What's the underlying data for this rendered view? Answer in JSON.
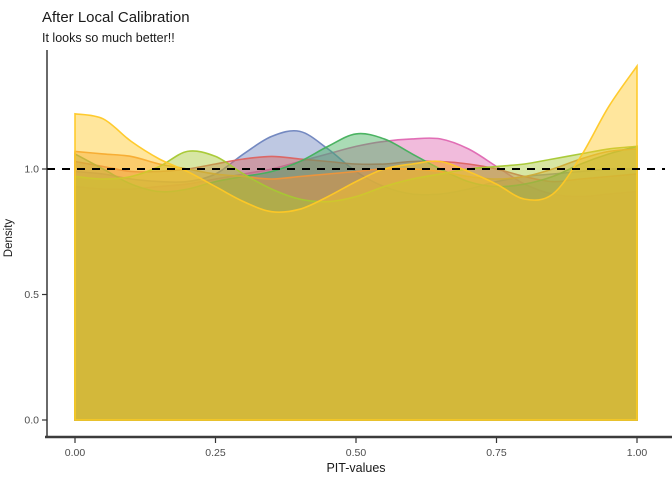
{
  "header": {
    "title": "After Local Calibration",
    "subtitle": "It looks so much better!!"
  },
  "chart_data": {
    "type": "area",
    "subtype": "overlapping-density",
    "title": "After Local Calibration",
    "subtitle": "It looks so much better!!",
    "xlabel": "PIT-values",
    "ylabel": "Density",
    "xlim": [
      0,
      1
    ],
    "ylim": [
      0,
      1.48
    ],
    "grid": false,
    "legend": "none",
    "x_ticks": [
      "0.00",
      "0.25",
      "0.50",
      "0.75",
      "1.00"
    ],
    "x_tick_values": [
      0,
      0.25,
      0.5,
      0.75,
      1
    ],
    "y_ticks": [
      "0.0",
      "0.5",
      "1.0"
    ],
    "y_tick_values": [
      0,
      0.5,
      1
    ],
    "reference_line": {
      "y": 1.0,
      "style": "dashed",
      "color": "#000000"
    },
    "fill_alpha": 0.45,
    "overlap_color": "#d4bc4e",
    "x": [
      0,
      0.05,
      0.1,
      0.15,
      0.2,
      0.25,
      0.3,
      0.35,
      0.4,
      0.45,
      0.5,
      0.55,
      0.6,
      0.65,
      0.7,
      0.75,
      0.8,
      0.85,
      0.9,
      0.95,
      1
    ],
    "series": [
      {
        "name": "pink",
        "color": "#DF68B2",
        "values": [
          0.93,
          0.92,
          0.92,
          0.93,
          0.94,
          0.96,
          0.98,
          1.0,
          1.03,
          1.06,
          1.09,
          1.11,
          1.12,
          1.12,
          1.08,
          1.01,
          0.94,
          0.9,
          0.89,
          0.9,
          0.91
        ]
      },
      {
        "name": "blue",
        "color": "#6E84BE",
        "values": [
          0.99,
          0.98,
          0.96,
          0.95,
          0.95,
          0.98,
          1.06,
          1.13,
          1.15,
          1.08,
          0.99,
          0.93,
          0.9,
          0.9,
          0.92,
          0.95,
          0.97,
          0.98,
          0.99,
          1.0,
          1.0
        ]
      },
      {
        "name": "red",
        "color": "#DC6360",
        "values": [
          1.03,
          1.01,
          0.99,
          0.99,
          1.0,
          1.02,
          1.04,
          1.05,
          1.04,
          1.03,
          1.02,
          1.02,
          1.03,
          1.03,
          1.02,
          1.0,
          0.97,
          0.95,
          0.96,
          0.97,
          0.98
        ]
      },
      {
        "name": "green",
        "color": "#43B05C",
        "values": [
          1.06,
          1.0,
          0.94,
          0.91,
          0.92,
          0.95,
          0.97,
          0.99,
          1.03,
          1.09,
          1.14,
          1.12,
          1.06,
          1.0,
          0.95,
          0.93,
          0.94,
          0.97,
          1.02,
          1.06,
          1.09
        ]
      },
      {
        "name": "orange",
        "color": "#F0953A",
        "values": [
          1.07,
          1.06,
          1.05,
          1.02,
          1.0,
          0.98,
          0.97,
          0.96,
          0.97,
          0.98,
          0.99,
          1.0,
          1.0,
          0.99,
          0.97,
          0.96,
          0.97,
          1.0,
          1.04,
          1.07,
          1.08
        ]
      },
      {
        "name": "lime",
        "color": "#A6C832",
        "values": [
          0.97,
          0.96,
          0.97,
          1.01,
          1.07,
          1.05,
          0.98,
          0.92,
          0.88,
          0.87,
          0.89,
          0.93,
          0.96,
          0.98,
          1.0,
          1.01,
          1.02,
          1.04,
          1.06,
          1.08,
          1.09
        ]
      },
      {
        "name": "gold",
        "color": "#FFC825",
        "values": [
          1.22,
          1.2,
          1.11,
          1.04,
          0.99,
          0.93,
          0.87,
          0.83,
          0.84,
          0.89,
          0.95,
          1.0,
          1.02,
          1.03,
          0.99,
          0.94,
          0.88,
          0.9,
          1.05,
          1.25,
          1.41
        ]
      }
    ]
  }
}
